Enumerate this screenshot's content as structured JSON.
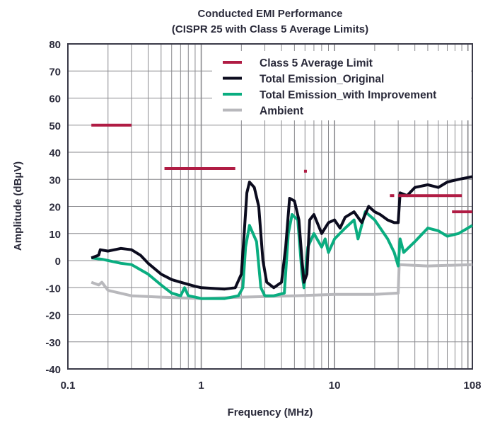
{
  "chart_data": {
    "type": "line",
    "title": "Conducted EMI Performance",
    "subtitle": "(CISPR 25 with Class 5 Average Limits)",
    "xlabel": "Frequency (MHz)",
    "ylabel": "Amplitude (dBµV)",
    "xscale": "log",
    "xlim": [
      0.1,
      108
    ],
    "ylim": [
      -40,
      80
    ],
    "xticks": [
      0.1,
      1,
      10,
      108
    ],
    "xtick_labels": [
      "0.1",
      "1",
      "10",
      "108"
    ],
    "yticks": [
      -40,
      -30,
      -20,
      -10,
      0,
      10,
      20,
      30,
      40,
      50,
      60,
      70,
      80
    ],
    "grid": true,
    "legend_placement": "top-right",
    "colors": {
      "limit": "#b01c44",
      "original": "#0b0b1e",
      "improved": "#0aad80",
      "ambient": "#b8b8bc"
    },
    "limit_segments": {
      "name": "Class 5 Average Limit",
      "segments": [
        {
          "f": [
            0.15,
            0.3
          ],
          "level": 50
        },
        {
          "f": [
            0.53,
            1.8
          ],
          "level": 34
        },
        {
          "f": [
            5.9,
            6.2
          ],
          "level": 33
        },
        {
          "f": [
            26,
            28
          ],
          "level": 24
        },
        {
          "f": [
            30,
            90
          ],
          "level": 24
        },
        {
          "f": [
            76,
            108
          ],
          "level": 18
        }
      ]
    },
    "series": [
      {
        "name": "Total Emission_Original",
        "x": [
          0.15,
          0.17,
          0.175,
          0.2,
          0.25,
          0.3,
          0.35,
          0.4,
          0.5,
          0.6,
          0.7,
          0.9,
          1,
          1.5,
          1.8,
          2.0,
          2.1,
          2.2,
          2.3,
          2.5,
          2.7,
          2.9,
          3.1,
          3.5,
          4,
          4.3,
          4.6,
          5,
          5.4,
          5.7,
          5.9,
          6.2,
          6.5,
          7,
          8,
          9,
          10,
          11,
          12,
          14,
          16,
          18,
          20,
          22,
          25,
          28,
          30,
          31,
          35,
          40,
          50,
          60,
          70,
          85,
          108
        ],
        "y": [
          1,
          2,
          4,
          3.5,
          4.5,
          4,
          2,
          -1,
          -5,
          -7,
          -8,
          -9.5,
          -10,
          -10.5,
          -10,
          -5,
          10,
          25,
          29,
          27,
          20,
          0,
          -8,
          -10,
          -8,
          5,
          23,
          22,
          15,
          0,
          -8,
          -5,
          15,
          17,
          10,
          14,
          15,
          12,
          16,
          18,
          14,
          20,
          18,
          17,
          15,
          14,
          14,
          25,
          24,
          27,
          28,
          27,
          29,
          30,
          31
        ]
      },
      {
        "name": "Total Emission_with Improvement",
        "x": [
          0.15,
          0.18,
          0.25,
          0.3,
          0.4,
          0.5,
          0.6,
          0.7,
          0.75,
          0.8,
          0.9,
          1,
          1.5,
          1.9,
          2.05,
          2.15,
          2.3,
          2.6,
          2.8,
          3.0,
          3.5,
          4.2,
          4.5,
          4.8,
          5.3,
          5.7,
          5.9,
          6.3,
          7,
          8,
          8.5,
          9,
          10,
          12,
          14,
          15,
          17,
          20,
          25,
          28,
          30,
          31,
          33,
          40,
          50,
          60,
          70,
          85,
          108
        ],
        "y": [
          1,
          0.5,
          -1,
          -1.5,
          -5,
          -9,
          -12,
          -13,
          -10,
          -13,
          -13.5,
          -14,
          -14,
          -13,
          -10,
          5,
          13,
          7,
          -10,
          -13,
          -13,
          -12,
          10,
          17,
          15,
          -5,
          -10,
          5,
          10,
          5,
          8,
          3,
          8,
          12,
          15,
          8,
          18,
          15,
          8,
          3,
          -2,
          8,
          3,
          7,
          12,
          11,
          9,
          10,
          13
        ]
      },
      {
        "name": "Ambient",
        "x": [
          0.15,
          0.17,
          0.18,
          0.2,
          0.3,
          0.5,
          1,
          2,
          5,
          10,
          20,
          30,
          30.5,
          50,
          108
        ],
        "y": [
          -8,
          -9,
          -8,
          -11,
          -13,
          -13.5,
          -14,
          -13.5,
          -13,
          -12.5,
          -12.5,
          -12,
          -1.5,
          -2,
          -1.5
        ]
      }
    ]
  }
}
